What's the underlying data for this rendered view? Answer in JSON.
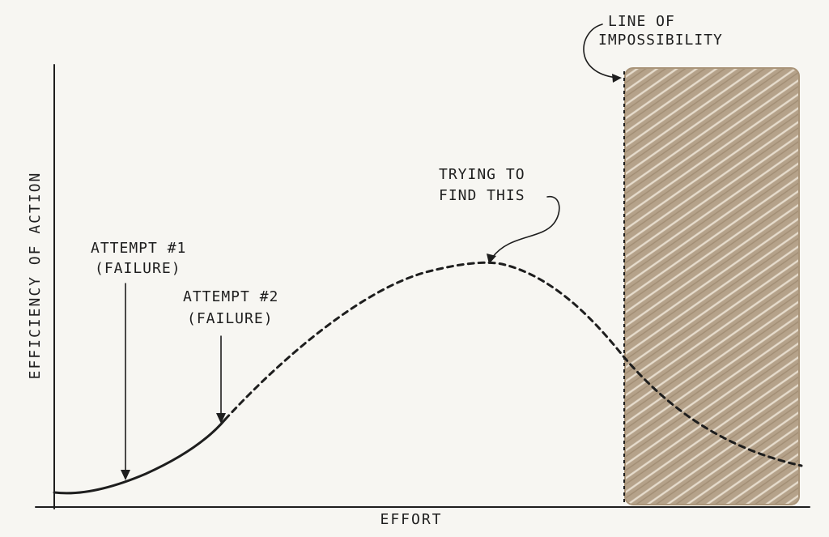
{
  "diagram": {
    "ylabel": "EFFICIENCY OF ACTION",
    "xlabel": "EFFORT",
    "boundary_label": [
      "LINE OF",
      "IMPOSSIBILITY"
    ],
    "peak_label": [
      "TRYING TO",
      "FIND THIS"
    ],
    "attempt1_label": [
      "ATTEMPT #1",
      "(FAILURE)"
    ],
    "attempt2_label": [
      "ATTEMPT #2",
      "(FAILURE)"
    ],
    "colors": {
      "ink": "#1e1e1e",
      "paper": "#f7f6f2",
      "impossible_zone": "#b29f86",
      "impossible_zone_light": "#d7cab8"
    }
  }
}
